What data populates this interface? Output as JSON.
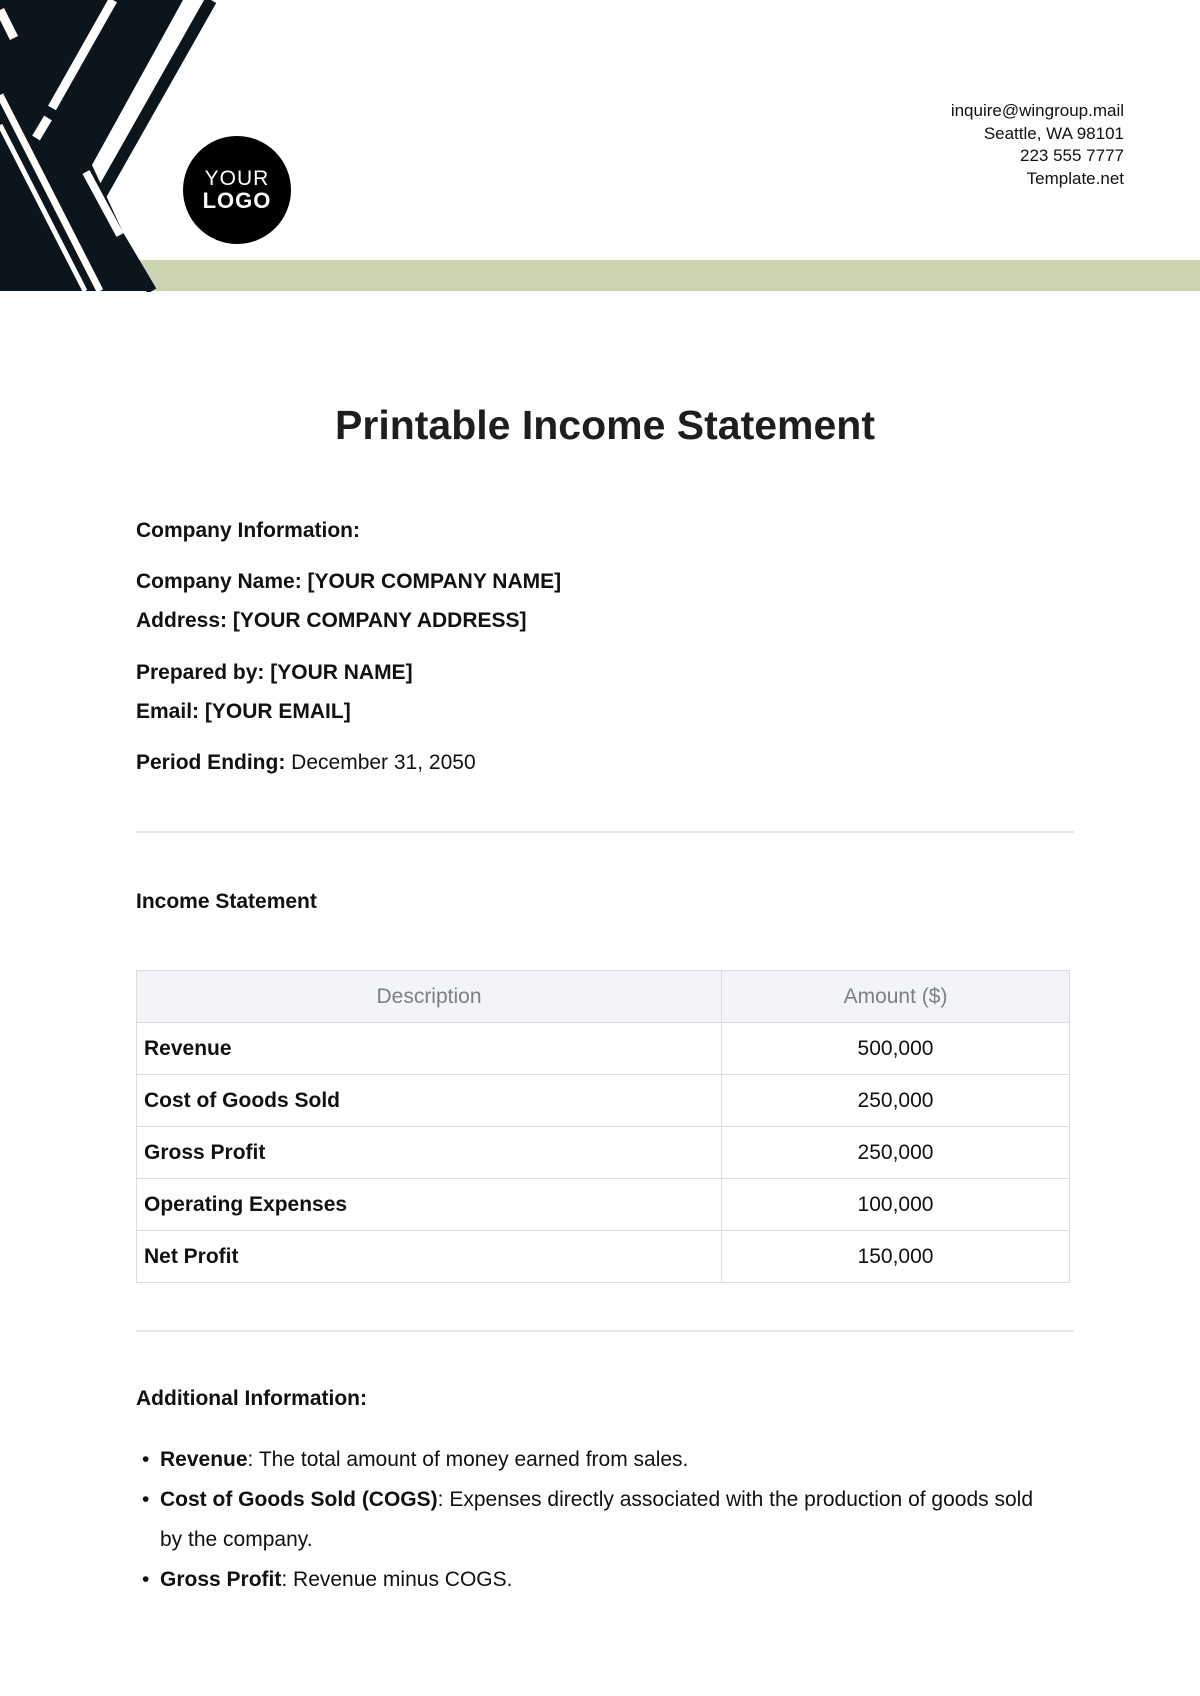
{
  "header": {
    "logo": {
      "line1": "YOUR",
      "line2": "LOGO"
    },
    "contact": [
      "inquire@wingroup.mail",
      "Seattle, WA 98101",
      "223 555 7777",
      "Template.net"
    ],
    "colors": {
      "dark": "#0c141c",
      "accent_band": "#cdd4b2"
    }
  },
  "title": "Printable Income Statement",
  "company": {
    "heading": "Company Information:",
    "name_label": "Company Name:",
    "name_value": "[YOUR COMPANY NAME]",
    "address_label": "Address:",
    "address_value": "[YOUR COMPANY ADDRESS]",
    "prepared_label": "Prepared by:",
    "prepared_value": "[YOUR NAME]",
    "email_label": "Email:",
    "email_value": "[YOUR EMAIL]",
    "period_label": "Period Ending:",
    "period_value": "December 31, 2050"
  },
  "statement": {
    "heading": "Income Statement",
    "columns": [
      "Description",
      "Amount ($)"
    ],
    "rows": [
      {
        "description": "Revenue",
        "amount": "500,000"
      },
      {
        "description": "Cost of Goods Sold",
        "amount": "250,000"
      },
      {
        "description": "Gross Profit",
        "amount": "250,000"
      },
      {
        "description": "Operating Expenses",
        "amount": "100,000"
      },
      {
        "description": "Net Profit",
        "amount": "150,000"
      }
    ]
  },
  "additional": {
    "heading": "Additional Information:",
    "items": [
      {
        "term": "Revenue",
        "text": ": The total amount of money earned from sales."
      },
      {
        "term": "Cost of Goods Sold (COGS)",
        "text": ": Expenses directly associated with the production of goods sold by the company."
      },
      {
        "term": "Gross Profit",
        "text": ": Revenue minus COGS."
      }
    ]
  }
}
